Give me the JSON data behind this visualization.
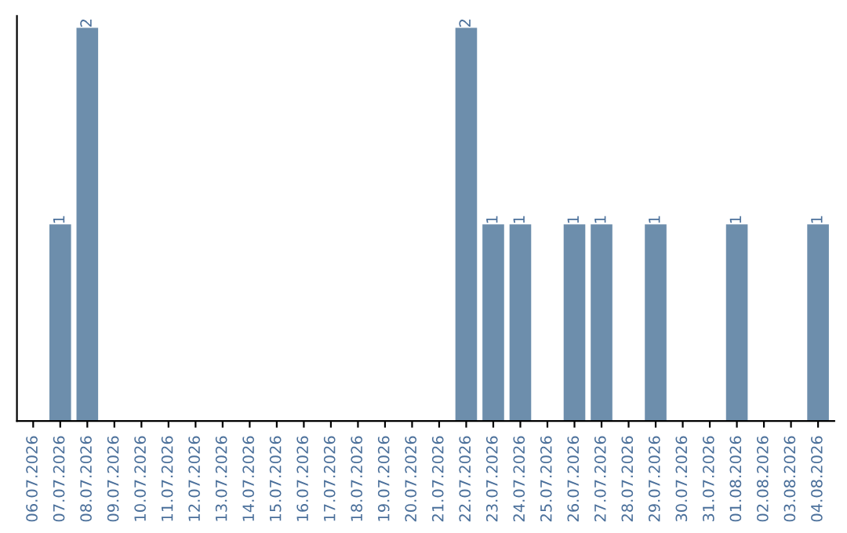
{
  "chart_data": {
    "type": "bar",
    "categories": [
      "06.07.2026",
      "07.07.2026",
      "08.07.2026",
      "09.07.2026",
      "10.07.2026",
      "11.07.2026",
      "12.07.2026",
      "13.07.2026",
      "14.07.2026",
      "15.07.2026",
      "16.07.2026",
      "17.07.2026",
      "18.07.2026",
      "19.07.2026",
      "20.07.2026",
      "21.07.2026",
      "22.07.2026",
      "23.07.2026",
      "24.07.2026",
      "25.07.2026",
      "26.07.2026",
      "27.07.2026",
      "28.07.2026",
      "29.07.2026",
      "30.07.2026",
      "31.07.2026",
      "01.08.2026",
      "02.08.2026",
      "03.08.2026",
      "04.08.2026"
    ],
    "values": [
      0,
      1,
      2,
      0,
      0,
      0,
      0,
      0,
      0,
      0,
      0,
      0,
      0,
      0,
      0,
      0,
      2,
      1,
      1,
      0,
      1,
      1,
      0,
      1,
      0,
      0,
      1,
      0,
      0,
      1
    ],
    "value_labels": [
      null,
      "1",
      "2",
      null,
      null,
      null,
      null,
      null,
      null,
      null,
      null,
      null,
      null,
      null,
      null,
      null,
      "2",
      "1",
      "1",
      null,
      "1",
      "1",
      null,
      "1",
      null,
      null,
      "1",
      null,
      null,
      "1"
    ],
    "color": "#6d8eac",
    "tick_labels": "x",
    "grid": false
  }
}
